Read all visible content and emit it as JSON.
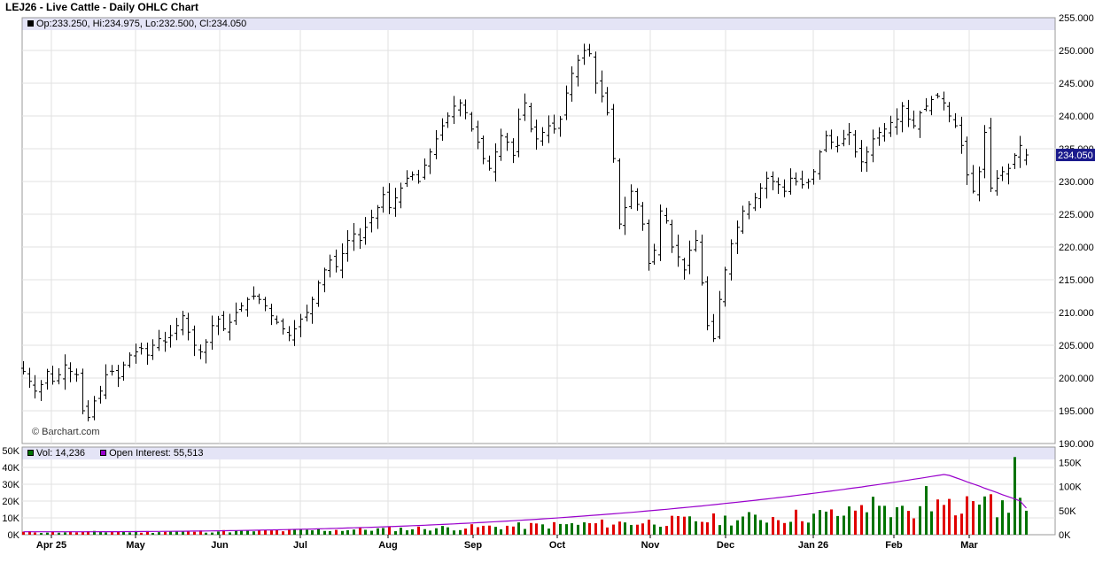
{
  "header": {
    "title": "LEJ26 - Live Cattle - Daily OHLC Chart"
  },
  "price_legend": {
    "ohlc": "Op:233.250, Hi:234.975, Lo:232.500, Cl:234.050"
  },
  "volume_legend": {
    "vol": "Vol: 14,236",
    "oi": "Open Interest: 55,513"
  },
  "copyright": "© Barchart.com",
  "last_price_label": "234.050",
  "colors": {
    "legend_bg": "#e4e4f6",
    "up_volume": "#007300",
    "down_volume": "#e00000",
    "open_interest": "#9900cc",
    "last_price_box": "#1a1a8c"
  },
  "chart_data": [
    {
      "type": "ohlc",
      "title": "LEJ26 - Live Cattle - Daily OHLC Chart",
      "y_axis": {
        "side": "right",
        "ylim": [
          190,
          255
        ],
        "ticks": [
          "255.000",
          "250.000",
          "245.000",
          "240.000",
          "235.000",
          "230.000",
          "225.000",
          "220.000",
          "215.000",
          "210.000",
          "205.000",
          "200.000",
          "195.000",
          "190.000"
        ]
      },
      "x_axis": {
        "labels": [
          "Apr 25",
          "May",
          "Jun",
          "Jul",
          "Aug",
          "Sep",
          "Oct",
          "Nov",
          "Dec",
          "Jan 26",
          "Feb",
          "Mar"
        ]
      },
      "grid": true,
      "last": {
        "open": 233.25,
        "high": 234.975,
        "low": 232.5,
        "close": 234.05
      },
      "closes": [
        201.0,
        199.5,
        198.0,
        199.0,
        201.0,
        199.5,
        200.5,
        202.0,
        201.0,
        200.5,
        195.0,
        194.0,
        196.5,
        198.0,
        200.5,
        201.0,
        200.0,
        202.0,
        203.5,
        204.0,
        204.5,
        203.5,
        205.0,
        206.0,
        205.5,
        206.5,
        208.0,
        209.5,
        207.0,
        205.0,
        204.0,
        205.5,
        208.0,
        209.0,
        207.5,
        208.5,
        210.0,
        211.0,
        212.0,
        212.5,
        212.0,
        211.0,
        209.5,
        208.5,
        207.5,
        206.5,
        207.5,
        209.0,
        210.0,
        212.0,
        214.5,
        216.5,
        218.0,
        217.0,
        219.0,
        221.0,
        222.0,
        221.0,
        223.0,
        224.5,
        226.0,
        228.0,
        226.0,
        227.5,
        229.0,
        230.5,
        231.0,
        230.0,
        232.5,
        234.5,
        236.5,
        238.5,
        240.0,
        241.5,
        242.0,
        240.5,
        238.0,
        236.0,
        233.5,
        232.0,
        234.5,
        237.0,
        236.0,
        234.0,
        239.5,
        242.0,
        238.0,
        236.5,
        237.5,
        238.5,
        238.0,
        239.5,
        243.5,
        246.5,
        248.5,
        250.0,
        249.5,
        245.0,
        243.0,
        240.5,
        233.5,
        223.5,
        226.0,
        228.5,
        226.5,
        223.5,
        217.5,
        219.5,
        225.5,
        224.0,
        220.0,
        218.5,
        216.5,
        219.5,
        221.0,
        214.5,
        208.0,
        206.0,
        212.0,
        216.5,
        220.5,
        223.0,
        225.5,
        226.5,
        227.5,
        229.0,
        230.5,
        230.0,
        229.5,
        228.5,
        230.5,
        230.0,
        229.5,
        230.0,
        231.5,
        234.5,
        237.0,
        236.0,
        235.5,
        236.5,
        237.5,
        234.5,
        233.0,
        234.5,
        236.5,
        237.5,
        238.0,
        239.0,
        239.5,
        241.5,
        239.5,
        238.5,
        240.5,
        241.5,
        242.5,
        243.0,
        242.0,
        240.0,
        238.5,
        235.5,
        231.0,
        228.5,
        231.5,
        237.5,
        229.0,
        230.5,
        231.5,
        232.0,
        234.0,
        235.5,
        234.05
      ],
      "volume_pane": {
        "yleft_ticks": [
          "50K",
          "40K",
          "30K",
          "20K",
          "10K",
          "0K"
        ],
        "yright_ticks": [
          "150K",
          "100K",
          "50K",
          "0K"
        ],
        "vol_ylim": [
          0,
          50000
        ],
        "oi_ylim": [
          0,
          175000
        ],
        "last_volume": 14236,
        "last_open_interest": 55513
      }
    }
  ]
}
